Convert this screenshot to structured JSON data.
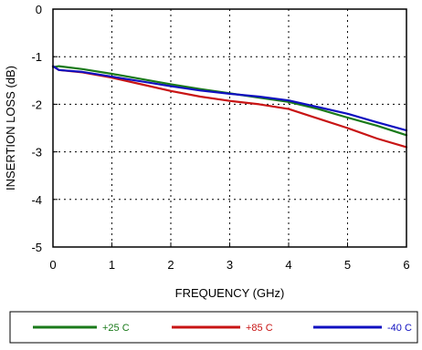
{
  "chart_data": {
    "type": "line",
    "xlabel": "FREQUENCY (GHz)",
    "ylabel": "INSERTION LOSS (dB)",
    "xlim": [
      0,
      6
    ],
    "ylim": [
      -5,
      0
    ],
    "x_ticks": [
      0,
      1,
      2,
      3,
      4,
      5,
      6
    ],
    "y_ticks": [
      0,
      -1,
      -2,
      -3,
      -4,
      -5
    ],
    "x_tick_labels": [
      "0",
      "1",
      "2",
      "3",
      "4",
      "5",
      "6"
    ],
    "y_tick_labels": [
      "0",
      "-1",
      "-2",
      "-3",
      "-4",
      "-5"
    ],
    "grid": "dotted",
    "legend_position": "bottom",
    "series": [
      {
        "name": "+25 C",
        "color": "#1a7a1a",
        "x": [
          0,
          0.1,
          0.5,
          1,
          1.5,
          2,
          2.5,
          3,
          3.5,
          4,
          4.5,
          5,
          5.5,
          6
        ],
        "y": [
          -1.22,
          -1.2,
          -1.26,
          -1.36,
          -1.47,
          -1.58,
          -1.68,
          -1.77,
          -1.86,
          -1.95,
          -2.1,
          -2.28,
          -2.45,
          -2.65
        ]
      },
      {
        "name": "+85 C",
        "color": "#c81414",
        "x": [
          0,
          0.1,
          0.5,
          1,
          1.5,
          2,
          2.5,
          3,
          3.5,
          4,
          4.5,
          5,
          5.5,
          6
        ],
        "y": [
          -1.2,
          -1.28,
          -1.33,
          -1.44,
          -1.58,
          -1.72,
          -1.84,
          -1.93,
          -2.0,
          -2.1,
          -2.3,
          -2.5,
          -2.72,
          -2.9
        ]
      },
      {
        "name": "-40 C",
        "color": "#1010c0",
        "x": [
          0,
          0.1,
          0.5,
          1,
          1.5,
          2,
          2.5,
          3,
          3.5,
          4,
          4.5,
          5,
          5.5,
          6
        ],
        "y": [
          -1.2,
          -1.28,
          -1.32,
          -1.42,
          -1.52,
          -1.62,
          -1.71,
          -1.78,
          -1.84,
          -1.92,
          -2.06,
          -2.2,
          -2.38,
          -2.55
        ]
      }
    ]
  }
}
